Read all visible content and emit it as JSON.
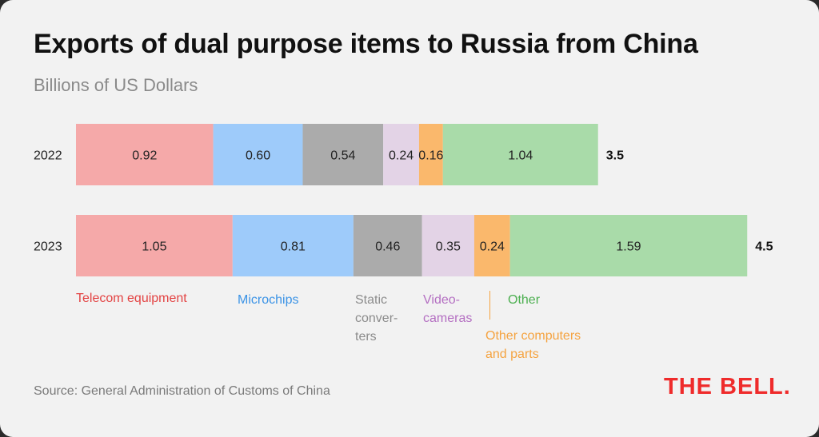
{
  "title": "Exports of dual purpose items to Russia from China",
  "subtitle": "Billions of US Dollars",
  "source": "Source: General Administration of Customs of China",
  "logo_text": "THE BELL.",
  "legend": {
    "telecom": "Telecom equipment",
    "microchips": "Microchips",
    "static": [
      "Static",
      "conver-",
      "ters"
    ],
    "video": [
      "Video-",
      "cameras"
    ],
    "other": "Other",
    "other_computers": [
      "Other computers",
      "and parts"
    ]
  },
  "chart_data": {
    "type": "bar",
    "orientation": "horizontal",
    "stacked": true,
    "title": "Exports of dual purpose items to Russia from China",
    "subtitle": "Billions of US Dollars",
    "categories": [
      "2022",
      "2023"
    ],
    "series": [
      {
        "name": "Telecom equipment",
        "color": "#f5a9a9",
        "values": [
          0.92,
          1.05
        ],
        "labels": [
          "0.92",
          "1.05"
        ]
      },
      {
        "name": "Microchips",
        "color": "#9ecbfa",
        "values": [
          0.6,
          0.81
        ],
        "labels": [
          "0.60",
          "0.81"
        ]
      },
      {
        "name": "Static converters",
        "color": "#ababab",
        "values": [
          0.54,
          0.46
        ],
        "labels": [
          "0.54",
          "0.46"
        ]
      },
      {
        "name": "Video-cameras",
        "color": "#e3d3e6",
        "values": [
          0.24,
          0.35
        ],
        "labels": [
          "0.24",
          "0.35"
        ]
      },
      {
        "name": "Other computers and parts",
        "color": "#fab86c",
        "values": [
          0.16,
          0.24
        ],
        "labels": [
          "0.16",
          "0.24"
        ]
      },
      {
        "name": "Other",
        "color": "#a9dba9",
        "values": [
          1.04,
          1.59
        ],
        "labels": [
          "1.04",
          "1.59"
        ]
      }
    ],
    "totals": [
      "3.5",
      "4.5"
    ],
    "legend_position": "bottom",
    "grid": false
  }
}
